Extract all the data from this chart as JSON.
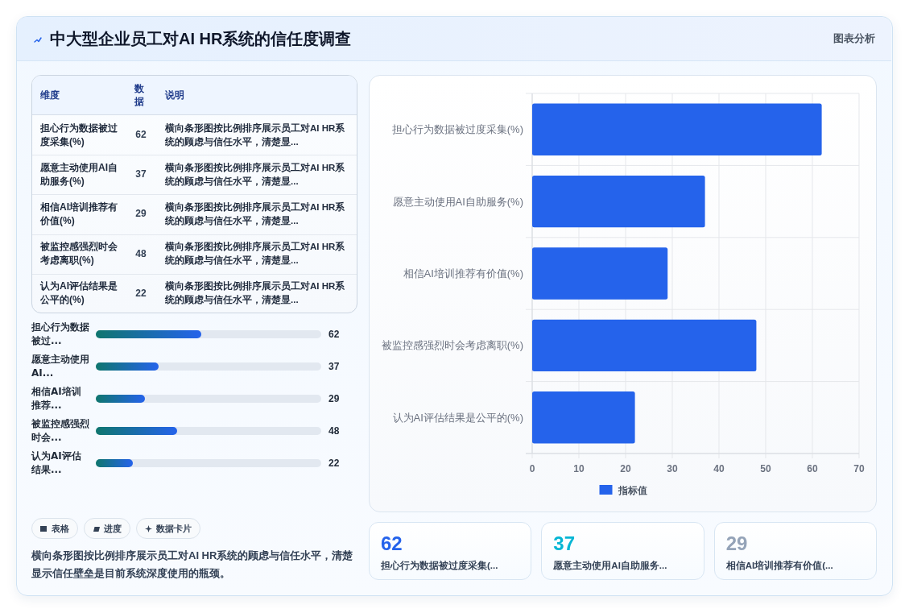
{
  "chart_data": [
    {
      "type": "other",
      "title": "中大型企业员工对AI HR系统的信任度调查",
      "annotations": [
        "图表分析"
      ]
    },
    {
      "type": "other",
      "categories": [
        "担心行为数据被过度采集(%)",
        "愿意主动使用AI自助服务(%)",
        "相信AI培训推荐有价值(%)",
        "被监控感强烈时会考虑离职(%)",
        "认为AI评估结果是公平的(%)"
      ],
      "values": [
        62,
        37,
        29,
        48,
        22
      ],
      "data_labels": true,
      "annotations": [
        "维度",
        "数据",
        "说明",
        "横向条形图按比例排序展示员工对AI HR系统的顾虑与信任水平，清楚显...",
        "横向条形图按比例排序展示员工对AI HR系统的顾虑与信任水平，清楚显...",
        "横向条形图按比例排序展示员工对AI HR系统的顾虑与信任水平，清楚显...",
        "横向条形图按比例排序展示员工对AI HR系统的顾虑与信任水平，清楚显...",
        "横向条形图按比例排序展示员工对AI HR系统的顾虑与信任水平，清楚显..."
      ]
    },
    {
      "type": "bar",
      "orientation": "horizontal",
      "categories": [
        "担心行为数据被过...",
        "愿意主动使用AI...",
        "相信AI培训推荐...",
        "被监控感强烈时会...",
        "认为AI评估结果..."
      ],
      "values": [
        62,
        37,
        29,
        48,
        22
      ],
      "color": "#2563eb",
      "xlim": [
        0,
        133
      ],
      "data_labels": true,
      "tick_labels": "y"
    },
    {
      "type": "other",
      "annotations": [
        "表格",
        "进度",
        "数据卡片",
        "横向条形图按比例排序展示员工对AI HR系统的顾虑与信任水平，清楚显示信任壁垒是目前系统深度使用的瓶颈。"
      ]
    },
    {
      "type": "bar",
      "orientation": "horizontal",
      "categories": [
        "担心行为数据被过度采集(%)",
        "愿意主动使用AI自助服务(%)",
        "相信AI培训推荐有价值(%)",
        "被监控感强烈时会考虑离职(%)",
        "认为AI评估结果是公平的(%)"
      ],
      "series": [
        {
          "name": "指标值",
          "color": "#2563eb",
          "values": [
            62,
            37,
            29,
            48,
            22
          ]
        }
      ],
      "xlim": [
        0,
        70
      ],
      "xticks": [
        0,
        10,
        20,
        30,
        40,
        50,
        60,
        70
      ],
      "grid": true,
      "legend": "bottom"
    },
    {
      "type": "other",
      "categories": [
        "担心行为数据被过度采集(...",
        "愿意主动使用AI自助服务...",
        "相信AI培训推荐有价值(..."
      ],
      "values": [
        62,
        37,
        29
      ],
      "data_labels": true
    }
  ]
}
